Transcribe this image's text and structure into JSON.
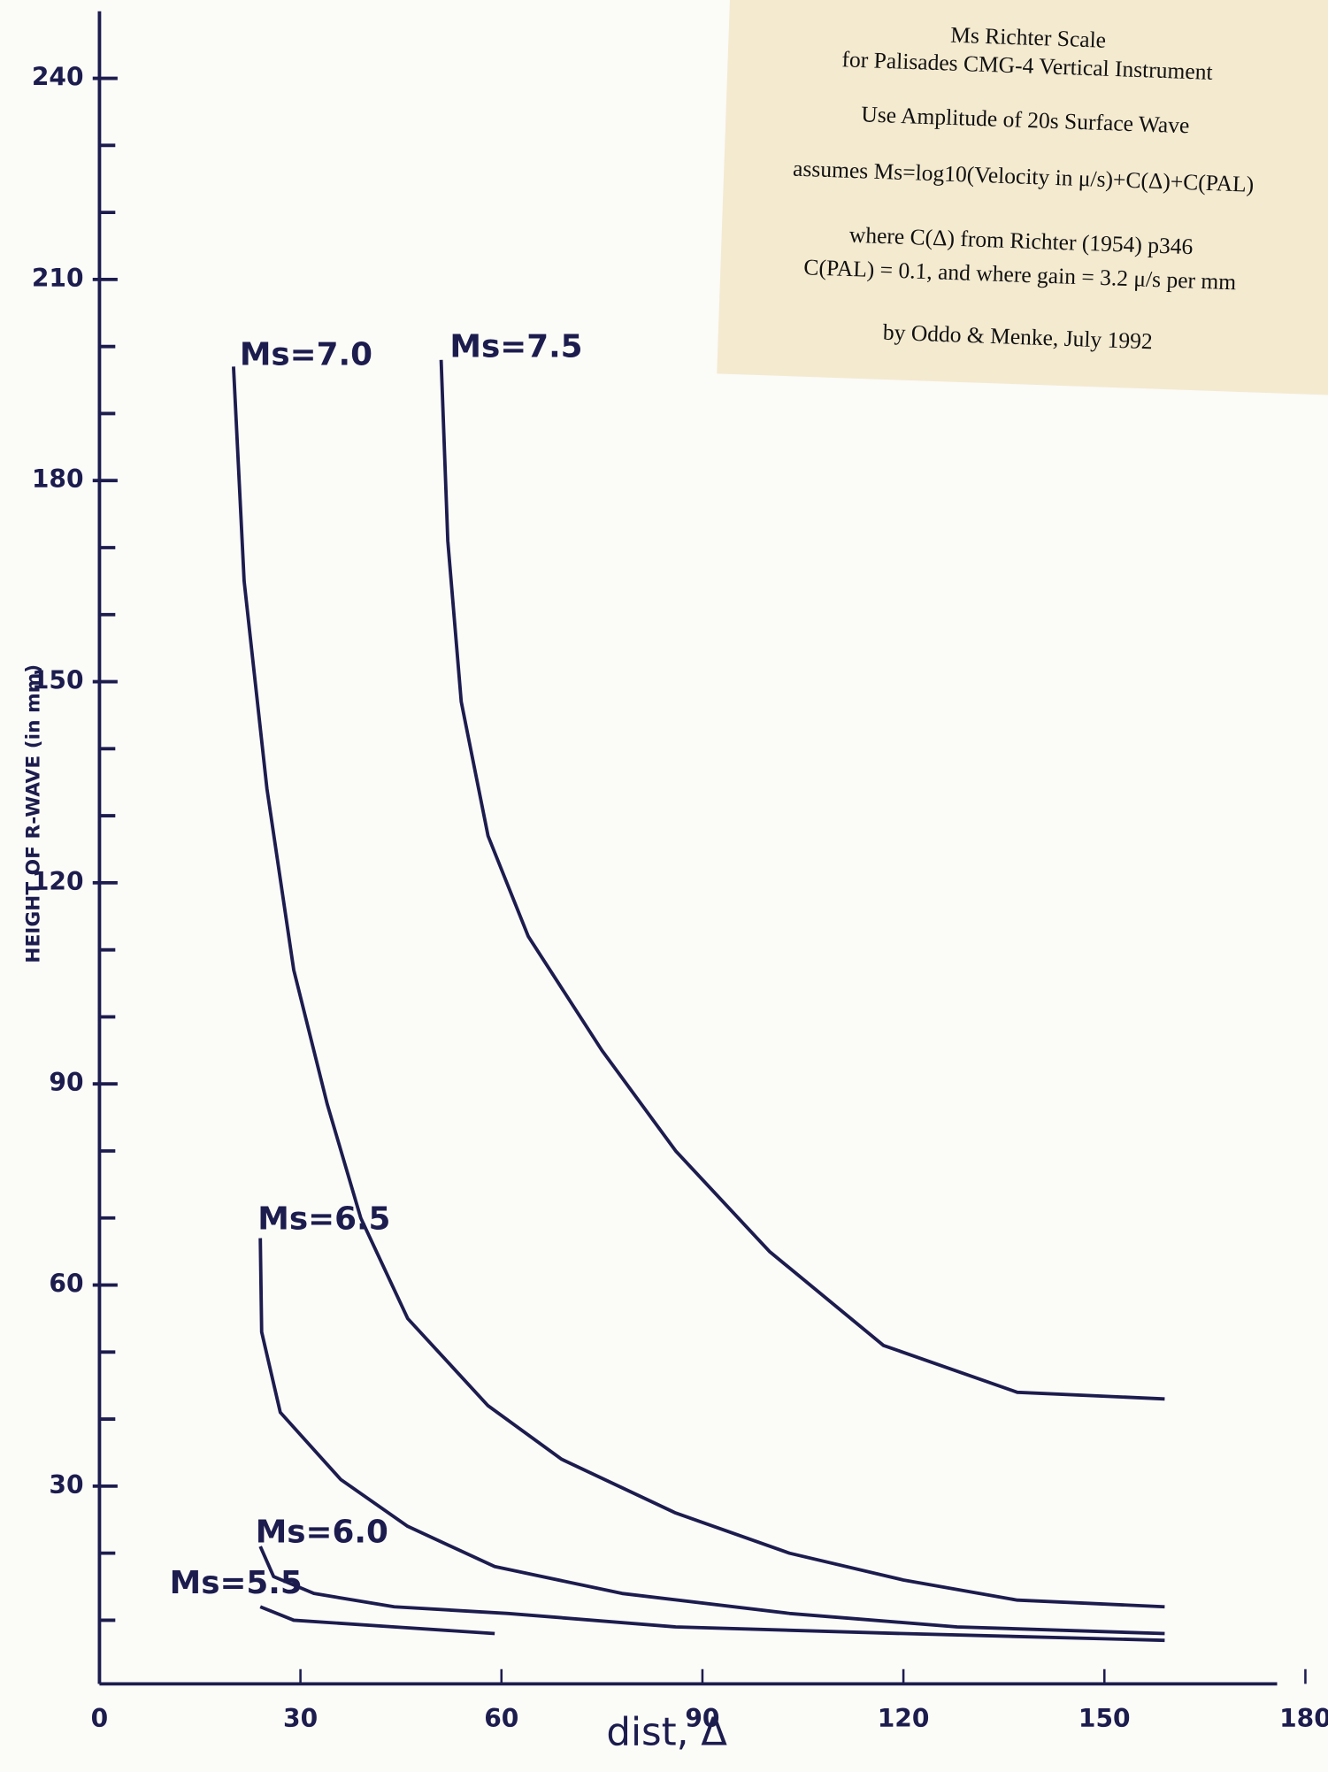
{
  "chart_data": {
    "type": "line",
    "y_label": "HEIGHT OF R-WAVE (in mm)",
    "x_label": "dist, Δ",
    "xlim": [
      0,
      180
    ],
    "xticks": [
      0,
      30,
      60,
      90,
      120,
      150,
      180
    ],
    "ylim": [
      0,
      250
    ],
    "yticks": [
      30,
      60,
      90,
      120,
      150,
      180,
      210,
      240
    ],
    "yminorticks": [
      10,
      20,
      40,
      50,
      70,
      80,
      100,
      110,
      130,
      140,
      160,
      170,
      190,
      200,
      220,
      230
    ],
    "note": [
      "Ms Richter Scale",
      "for Palisades CMG-4 Vertical Instrument",
      "Use Amplitude of 20s Surface Wave",
      "assumes Ms=log10(Velocity in μ/s)+C(Δ)+C(PAL)",
      "where C(Δ) from Richter (1954) p346",
      "C(PAL) = 0.1, and where gain = 3.2 μ/s per mm",
      "by Oddo & Menke, July 1992"
    ],
    "series": [
      {
        "name": "Ms=7.0",
        "color": "#1c1c4e",
        "x": [
          20,
          21.6,
          25,
          29,
          34,
          39,
          46,
          58,
          69,
          86,
          103,
          120,
          137,
          159
        ],
        "values": [
          197,
          165,
          134,
          107,
          87,
          70,
          55,
          42,
          34,
          26,
          20,
          16,
          13,
          12
        ]
      },
      {
        "name": "Ms=7.5",
        "color": "#1c1c4e",
        "x": [
          51,
          52,
          54,
          58,
          64,
          75,
          86,
          100,
          117,
          137,
          159
        ],
        "values": [
          198,
          171,
          147,
          127,
          112,
          95,
          80,
          65,
          51,
          44,
          43
        ]
      },
      {
        "name": "Ms=6.5",
        "color": "#1c1c4e",
        "x": [
          24,
          24.2,
          27,
          36,
          46,
          59,
          78,
          103,
          128,
          159
        ],
        "values": [
          67,
          53,
          41,
          31,
          24,
          18,
          14,
          11,
          9,
          8
        ]
      },
      {
        "name": "Ms=6.0",
        "color": "#1c1c4e",
        "x": [
          24,
          26,
          32,
          44,
          61,
          86,
          120,
          159
        ],
        "values": [
          21,
          16.5,
          14,
          12,
          11,
          9,
          8,
          7
        ]
      },
      {
        "name": "Ms=5.5",
        "color": "#1c1c4e",
        "x": [
          24,
          29,
          44,
          59
        ],
        "values": [
          12,
          10,
          9,
          8
        ]
      }
    ]
  }
}
